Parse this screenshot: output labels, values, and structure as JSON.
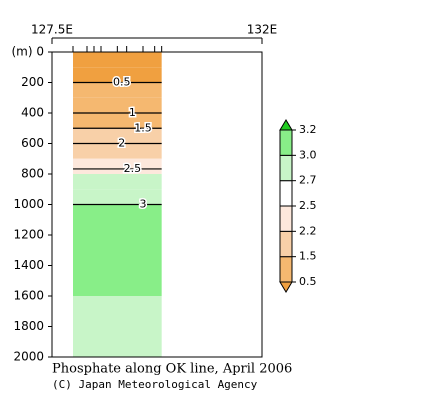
{
  "chart_data": {
    "type": "contour",
    "title": "Phosphate along OK line, April 2006",
    "credit": "(C) Japan Meteorological Agency",
    "y_label": "(m)",
    "xlim": [
      127.5,
      132
    ],
    "xticks": [
      {
        "value": 127.5,
        "label": "127.5E"
      },
      {
        "value": 132,
        "label": "132E"
      }
    ],
    "ylim": [
      0,
      2000
    ],
    "yticks": [
      0,
      200,
      400,
      600,
      800,
      1000,
      1200,
      1400,
      1600,
      1800,
      2000
    ],
    "stations": [
      127.95,
      128.25,
      128.4,
      128.55,
      128.9,
      129.1,
      129.45,
      129.7,
      129.85
    ],
    "depth": [
      0,
      100,
      200,
      300,
      400,
      500,
      600,
      700,
      800,
      900,
      1000,
      1200,
      1400,
      1600,
      1800,
      2000
    ],
    "values": [
      0.3,
      0.4,
      0.5,
      0.8,
      1.0,
      1.5,
      2.0,
      2.3,
      2.6,
      2.8,
      3.0,
      3.1,
      3.1,
      3.0,
      2.9,
      2.9
    ],
    "contours": [
      {
        "value": 0.5,
        "label": "0.5"
      },
      1,
      1.5,
      2,
      2.5,
      3
    ],
    "colorbar": {
      "ticks": [
        0.5,
        1.5,
        2.2,
        2.5,
        2.7,
        {
          "value": 3,
          "label": "3.0"
        },
        3.2
      ],
      "colors": [
        "#f0a040",
        "#f5b870",
        "#f8d0a8",
        "#fde8dc",
        "#ffffff",
        "#c8f5c8",
        "#88ee88",
        "#22cc22"
      ]
    }
  }
}
